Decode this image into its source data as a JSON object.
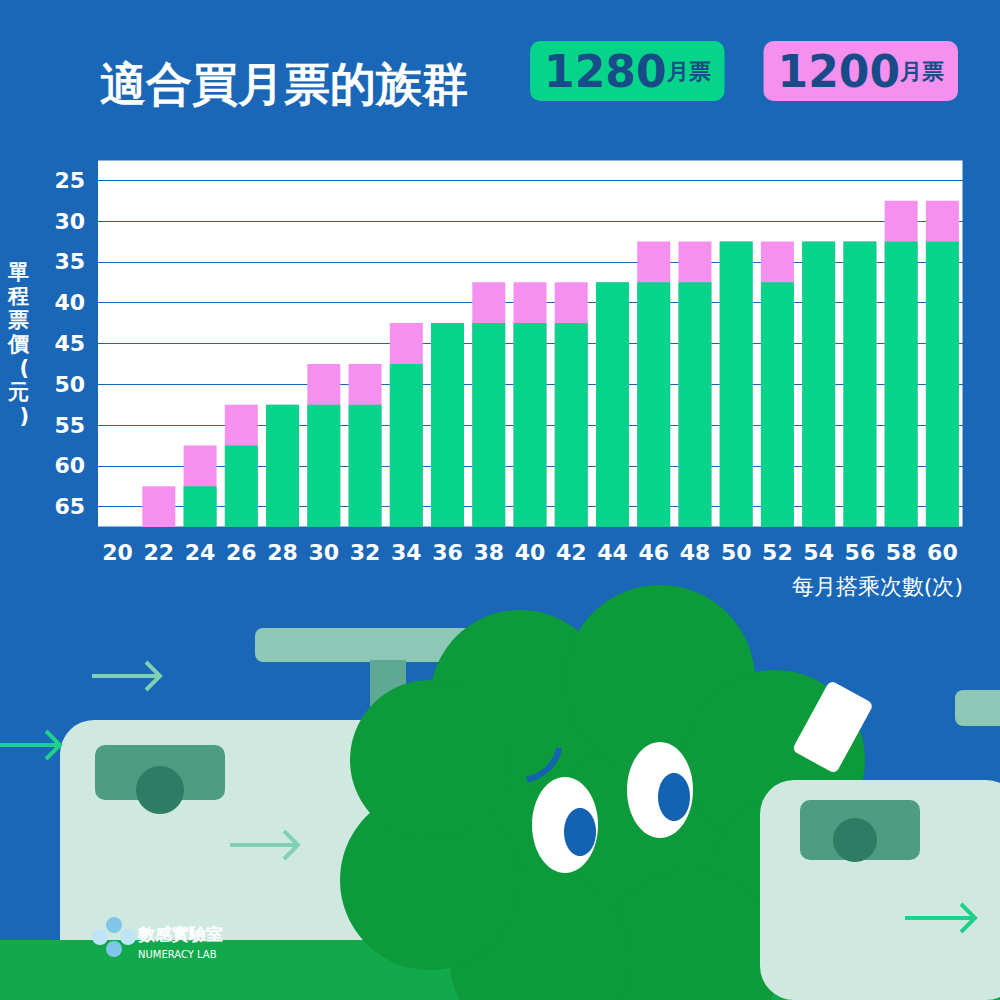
{
  "chart_data": {
    "type": "bar",
    "title": "適合買月票的族群",
    "x_label": "每月搭乘次數(次)",
    "y_label": "單程票價(元)",
    "categories": [
      "20",
      "22",
      "24",
      "26",
      "28",
      "30",
      "32",
      "34",
      "36",
      "38",
      "40",
      "42",
      "44",
      "46",
      "48",
      "50",
      "52",
      "54",
      "56",
      "58",
      "60"
    ],
    "series": [
      {
        "name": "1280月票",
        "color": "#06d48b",
        "values": [
          null,
          null,
          62.5,
          57.5,
          52.5,
          52.5,
          52.5,
          47.5,
          42.5,
          42.5,
          42.5,
          42.5,
          37.5,
          37.5,
          37.5,
          32.5,
          37.5,
          32.5,
          32.5,
          32.5,
          32.5
        ]
      },
      {
        "name": "1200月票",
        "color": "#f590ef",
        "values": [
          null,
          62.5,
          57.5,
          52.5,
          52.5,
          47.5,
          47.5,
          42.5,
          42.5,
          37.5,
          37.5,
          37.5,
          37.5,
          32.5,
          32.5,
          32.5,
          32.5,
          32.5,
          32.5,
          27.5,
          27.5
        ]
      }
    ],
    "ylim": [
      67.5,
      22.5
    ],
    "yticks": [
      25,
      30,
      35,
      40,
      45,
      50,
      55,
      60,
      65
    ],
    "grid": true,
    "legend": "upper right"
  },
  "logo_text": "數感實驗室",
  "logo_subtext": "NUMERACY LAB"
}
